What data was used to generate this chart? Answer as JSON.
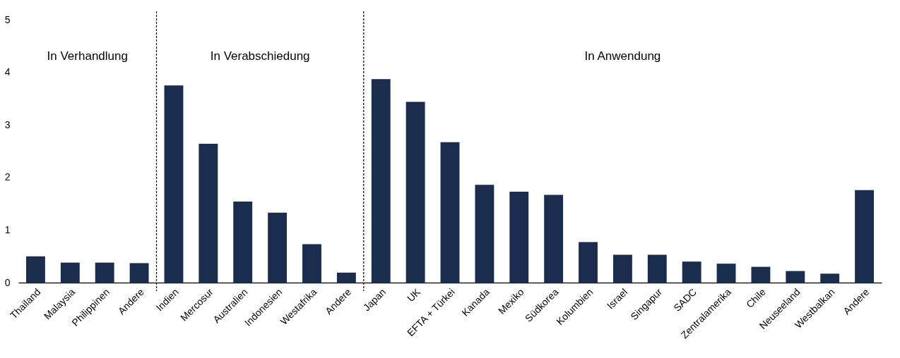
{
  "chart_data": {
    "type": "bar",
    "categories": [
      "Thailand",
      "Malaysia",
      "Philippinen",
      "Andere",
      "Indien",
      "Mercosur",
      "Australien",
      "Indonesien",
      "Westafrika",
      "Andere",
      "Japan",
      "UK",
      "EFTA + Türkei",
      "Kanada",
      "Mexiko",
      "Südkorea",
      "Kolumbien",
      "Israel",
      "Singapur",
      "SADC",
      "Zentralamerika",
      "Chile",
      "Neuseeland",
      "Westbalkan",
      "Andere"
    ],
    "values": [
      0.5,
      0.38,
      0.38,
      0.37,
      3.75,
      2.64,
      1.54,
      1.33,
      0.73,
      0.19,
      3.87,
      3.44,
      2.67,
      1.86,
      1.73,
      1.67,
      0.77,
      0.53,
      0.53,
      0.4,
      0.36,
      0.3,
      0.22,
      0.17,
      1.76
    ],
    "color": "#1b2d4f",
    "ylim": [
      0,
      5
    ],
    "yticks": [
      0,
      1,
      2,
      3,
      4,
      5
    ],
    "grid": false,
    "ref_lines": [
      {
        "axis": "x",
        "value": "Indien",
        "line_style": "dashed",
        "color": "#000000"
      },
      {
        "axis": "x",
        "value": "Japan",
        "line_style": "dashed",
        "color": "#000000"
      }
    ],
    "annotations": [
      "In Verhandlung",
      "In Verabschiedung",
      "In Anwendung"
    ]
  }
}
